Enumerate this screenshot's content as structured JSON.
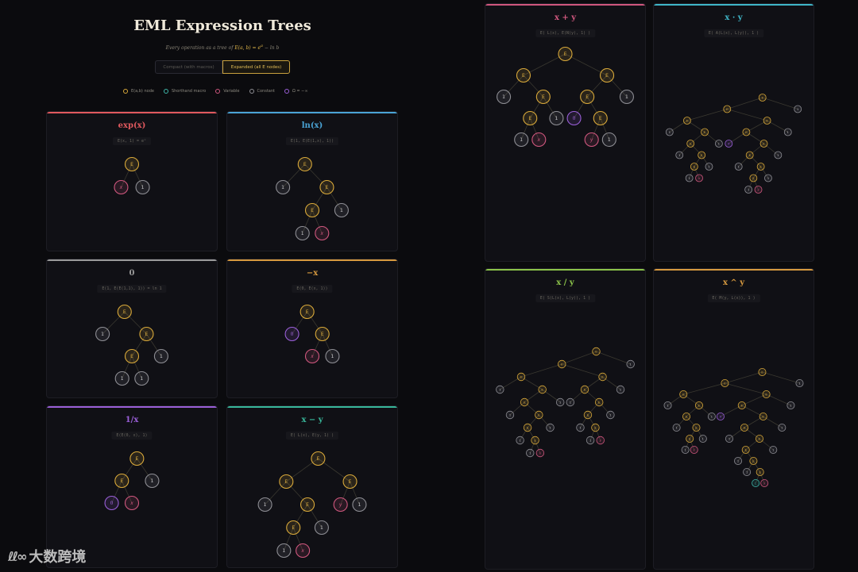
{
  "header": {
    "title": "EML Expression Trees",
    "subtitle_prefix": "Every operation as a tree of ",
    "subtitle_formula": "E(a, b) = e",
    "subtitle_sup": "a",
    "subtitle_suffix": " − ln b"
  },
  "toggle": {
    "compact_label": "Compact (with macros)",
    "expanded_label": "Expanded (all E nodes)",
    "active": "expanded"
  },
  "legend": [
    {
      "label": "E(a,b) node",
      "color": "#d9a93a"
    },
    {
      "label": "Shorthand macro",
      "color": "#3fb6a8"
    },
    {
      "label": "Variable",
      "color": "#d0577e"
    },
    {
      "label": "Constant",
      "color": "#8e8e94"
    },
    {
      "label": "Ω = −∞",
      "color": "#9a5fd8"
    }
  ],
  "colors": {
    "E": "#d9a93a",
    "M": "#3fb6a8",
    "V": "#d0577e",
    "C": "#8e8e94",
    "O": "#9a5fd8"
  },
  "cards": [
    {
      "id": "exp",
      "title": "exp(x)",
      "formula": "E(x, 1) = eˣ",
      "color": "#e0595e",
      "tree": [
        "E",
        [
          "V",
          "x"
        ],
        [
          "C",
          "1"
        ]
      ]
    },
    {
      "id": "ln",
      "title": "ln(x)",
      "formula": "E(1, E(E(1,x), 1))",
      "color": "#4aa4d6",
      "tree": [
        "E",
        [
          "C",
          "1"
        ],
        [
          "E",
          [
            "E",
            [
              "C",
              "1"
            ],
            [
              "V",
              "x"
            ]
          ],
          [
            "C",
            "1"
          ]
        ]
      ]
    },
    {
      "id": "zero",
      "title": "0",
      "formula": "E(1, E(E(1,1), 1)) = ln 1",
      "color": "#9a9a9a",
      "tree": [
        "E",
        [
          "C",
          "1"
        ],
        [
          "E",
          [
            "E",
            [
              "C",
              "1"
            ],
            [
              "C",
              "1"
            ]
          ],
          [
            "C",
            "1"
          ]
        ]
      ]
    },
    {
      "id": "neg",
      "title": "−x",
      "formula": "E(0, E(x, 1))",
      "color": "#d6993f",
      "tree": [
        "E",
        [
          "O",
          "0"
        ],
        [
          "E",
          [
            "V",
            "x"
          ],
          [
            "C",
            "1"
          ]
        ]
      ]
    },
    {
      "id": "inv",
      "title": "1/x",
      "formula": "E(E(0, x), 1)",
      "color": "#9a5fd8",
      "tree": [
        "E",
        [
          "E",
          [
            "O",
            "0"
          ],
          [
            "V",
            "x"
          ]
        ],
        [
          "C",
          "1"
        ]
      ]
    },
    {
      "id": "sub",
      "title": "x − y",
      "formula": "E( L(x), E(y, 1) )",
      "color": "#38b79a",
      "tree": [
        "E",
        [
          "E",
          [
            "C",
            "1"
          ],
          [
            "E",
            [
              "E",
              [
                "C",
                "1"
              ],
              [
                "V",
                "x"
              ]
            ],
            [
              "C",
              "1"
            ]
          ]
        ],
        [
          "E",
          [
            "V",
            "y"
          ],
          [
            "C",
            "1"
          ]
        ]
      ]
    },
    {
      "id": "add",
      "title": "x + y",
      "formula": "E( L(x), E(N(y), 1) )",
      "color": "#d0577e",
      "tree": [
        "E",
        [
          "E",
          [
            "C",
            "1"
          ],
          [
            "E",
            [
              "E",
              [
                "C",
                "1"
              ],
              [
                "V",
                "x"
              ]
            ],
            [
              "C",
              "1"
            ]
          ]
        ],
        [
          "E",
          [
            "E",
            [
              "O",
              "0"
            ],
            [
              "E",
              [
                "V",
                "y"
              ],
              [
                "C",
                "1"
              ]
            ]
          ],
          [
            "C",
            "1"
          ]
        ]
      ]
    },
    {
      "id": "mul",
      "title": "x · y",
      "formula": "E( A(L(x), L(y)), 1 )",
      "color": "#3fb6c8",
      "tree": [
        "E",
        [
          "E",
          [
            "E",
            [
              "C",
              "1"
            ],
            [
              "E",
              [
                "E",
                [
                  "C",
                  "1"
                ],
                [
                  "E",
                  [
                    "E",
                    [
                      "C",
                      "1"
                    ],
                    [
                      "V",
                      "x"
                    ]
                  ],
                  [
                    "C",
                    "1"
                  ]
                ]
              ],
              [
                "C",
                "1"
              ]
            ]
          ],
          [
            "E",
            [
              "E",
              [
                "O",
                "0"
              ],
              [
                "E",
                [
                  "E",
                  [
                    "C",
                    "1"
                  ],
                  [
                    "E",
                    [
                      "E",
                      [
                        "C",
                        "1"
                      ],
                      [
                        "V",
                        "y"
                      ]
                    ],
                    [
                      "C",
                      "1"
                    ]
                  ]
                ],
                [
                  "C",
                  "1"
                ]
              ]
            ],
            [
              "C",
              "1"
            ]
          ]
        ],
        [
          "C",
          "1"
        ]
      ]
    },
    {
      "id": "div",
      "title": "x / y",
      "formula": "E( S(L(x), L(y)), 1 )",
      "color": "#8bc34a",
      "tree": [
        "E",
        [
          "E",
          [
            "E",
            [
              "C",
              "1"
            ],
            [
              "E",
              [
                "E",
                [
                  "C",
                  "1"
                ],
                [
                  "E",
                  [
                    "E",
                    [
                      "C",
                      "1"
                    ],
                    [
                      "E",
                      [
                        "C",
                        "1"
                      ],
                      [
                        "V",
                        "x"
                      ]
                    ]
                  ],
                  [
                    "C",
                    "1"
                  ]
                ]
              ],
              [
                "C",
                "1"
              ]
            ]
          ],
          [
            "E",
            [
              "E",
              [
                "C",
                "1"
              ],
              [
                "E",
                [
                  "E",
                  [
                    "C",
                    "1"
                  ],
                  [
                    "E",
                    [
                      "C",
                      "1"
                    ],
                    [
                      "V",
                      "y"
                    ]
                  ]
                ],
                [
                  "C",
                  "1"
                ]
              ]
            ],
            [
              "C",
              "1"
            ]
          ]
        ],
        [
          "C",
          "1"
        ]
      ]
    },
    {
      "id": "pow",
      "title": "x ^ y",
      "formula": "E( M(y, L(x)), 1 )",
      "color": "#d6993f",
      "tree": [
        "E",
        [
          "E",
          [
            "E",
            [
              "C",
              "1"
            ],
            [
              "E",
              [
                "E",
                [
                  "C",
                  "1"
                ],
                [
                  "E",
                  [
                    "E",
                    [
                      "C",
                      "1"
                    ],
                    [
                      "V",
                      "x"
                    ]
                  ],
                  [
                    "C",
                    "1"
                  ]
                ]
              ],
              [
                "C",
                "1"
              ]
            ]
          ],
          [
            "E",
            [
              "E",
              [
                "O",
                "0"
              ],
              [
                "E",
                [
                  "E",
                  [
                    "C",
                    "1"
                  ],
                  [
                    "E",
                    [
                      "E",
                      [
                        "C",
                        "1"
                      ],
                      [
                        "E",
                        [
                          "C",
                          "1"
                        ],
                        [
                          "E",
                          [
                            "M",
                            "L"
                          ],
                          [
                            "V",
                            "x"
                          ]
                        ]
                      ]
                    ],
                    [
                      "C",
                      "1"
                    ]
                  ]
                ],
                [
                  "C",
                  "1"
                ]
              ]
            ],
            [
              "C",
              "1"
            ]
          ]
        ],
        [
          "C",
          "1"
        ]
      ]
    }
  ],
  "watermark": {
    "logo": "ℓℓ∞",
    "text": "大数跨境"
  }
}
